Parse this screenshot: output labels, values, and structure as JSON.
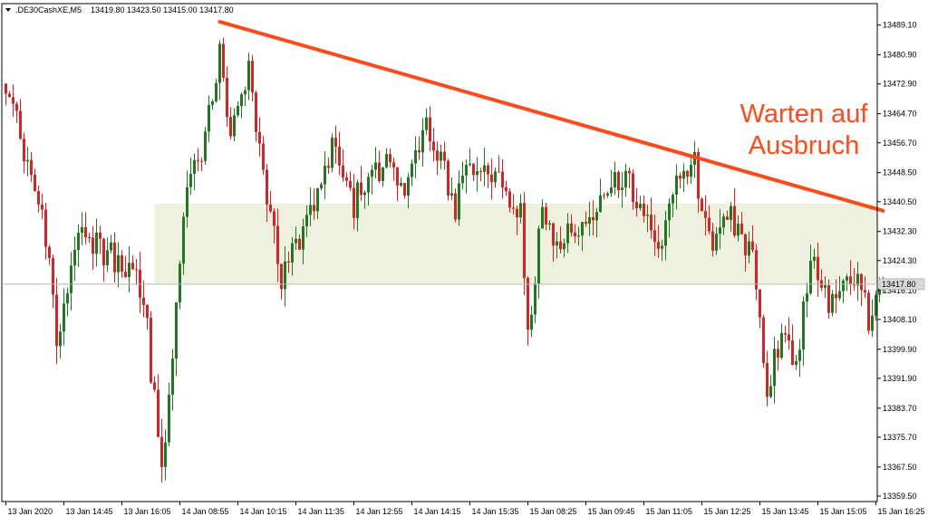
{
  "header": {
    "symbol": ".DE30CashXE,M5",
    "ohlc": "13419.80 13423.50 13415.00 13417.80"
  },
  "annotation": {
    "line1": "Warten auf",
    "line2": "Ausbruch"
  },
  "colors": {
    "bull": "#1f7a1f",
    "bear": "#e02020",
    "trendline": "#ff4a1c",
    "zone": "#eef1df",
    "grid": "#e4e4e4",
    "price_tag": "#d9d9d9"
  },
  "chart_data": {
    "type": "candlestick",
    "title": "",
    "y_axis": {
      "ticks": [
        13359.5,
        13367.5,
        13375.7,
        13383.7,
        13391.9,
        13399.9,
        13408.1,
        13416.1,
        13424.3,
        13432.3,
        13440.5,
        13448.5,
        13456.7,
        13464.7,
        13472.9,
        13480.9,
        13489.1
      ],
      "tick_labels": [
        "13359.50",
        "13367.50",
        "13375.70",
        "13383.70",
        "13391.90",
        "13399.90",
        "13408.10",
        "13416.10",
        "13424.30",
        "13432.30",
        "13440.50",
        "13448.50",
        "13456.70",
        "13464.70",
        "13472.90",
        "13480.90",
        "13489.10"
      ],
      "range": [
        13358.0,
        13495.0
      ]
    },
    "x_axis": {
      "tick_labels": [
        "13 Jan 2020",
        "13 Jan 14:45",
        "13 Jan 16:05",
        "14 Jan 08:55",
        "14 Jan 10:15",
        "14 Jan 11:35",
        "14 Jan 12:55",
        "14 Jan 14:15",
        "14 Jan 15:35",
        "15 Jan 08:25",
        "15 Jan 09:45",
        "15 Jan 11:05",
        "15 Jan 12:25",
        "15 Jan 13:45",
        "15 Jan 15:05",
        "15 Jan 16:25"
      ],
      "tick_bar_index": [
        0,
        16,
        32,
        48,
        64,
        80,
        96,
        112,
        128,
        144,
        160,
        176,
        192,
        208,
        224,
        240
      ]
    },
    "current_price": 13417.8,
    "resistance_line": {
      "from_bar": 59,
      "from_price": 13490.0,
      "to_bar": 242,
      "to_price": 13438.0
    },
    "consolidation_zone": {
      "from_bar": 41,
      "low": 13418.0,
      "high": 13440.0
    },
    "key_points": [
      {
        "bar": 0,
        "price": 13470
      },
      {
        "bar": 10,
        "price": 13440
      },
      {
        "bar": 14,
        "price": 13403
      },
      {
        "bar": 20,
        "price": 13430
      },
      {
        "bar": 28,
        "price": 13427
      },
      {
        "bar": 38,
        "price": 13415
      },
      {
        "bar": 43,
        "price": 13364
      },
      {
        "bar": 47,
        "price": 13410
      },
      {
        "bar": 50,
        "price": 13445
      },
      {
        "bar": 55,
        "price": 13457
      },
      {
        "bar": 59,
        "price": 13482
      },
      {
        "bar": 62,
        "price": 13458
      },
      {
        "bar": 67,
        "price": 13475
      },
      {
        "bar": 72,
        "price": 13442
      },
      {
        "bar": 76,
        "price": 13420
      },
      {
        "bar": 82,
        "price": 13430
      },
      {
        "bar": 90,
        "price": 13455
      },
      {
        "bar": 96,
        "price": 13440
      },
      {
        "bar": 104,
        "price": 13452
      },
      {
        "bar": 110,
        "price": 13440
      },
      {
        "bar": 116,
        "price": 13463
      },
      {
        "bar": 124,
        "price": 13440
      },
      {
        "bar": 130,
        "price": 13453
      },
      {
        "bar": 137,
        "price": 13445
      },
      {
        "bar": 142,
        "price": 13438
      },
      {
        "bar": 144,
        "price": 13403
      },
      {
        "bar": 148,
        "price": 13440
      },
      {
        "bar": 152,
        "price": 13428
      },
      {
        "bar": 160,
        "price": 13437
      },
      {
        "bar": 168,
        "price": 13448
      },
      {
        "bar": 176,
        "price": 13440
      },
      {
        "bar": 180,
        "price": 13428
      },
      {
        "bar": 186,
        "price": 13448
      },
      {
        "bar": 190,
        "price": 13450
      },
      {
        "bar": 194,
        "price": 13428
      },
      {
        "bar": 200,
        "price": 13435
      },
      {
        "bar": 206,
        "price": 13425
      },
      {
        "bar": 210,
        "price": 13390
      },
      {
        "bar": 214,
        "price": 13405
      },
      {
        "bar": 218,
        "price": 13395
      },
      {
        "bar": 222,
        "price": 13425
      },
      {
        "bar": 228,
        "price": 13412
      },
      {
        "bar": 234,
        "price": 13420
      },
      {
        "bar": 238,
        "price": 13408
      },
      {
        "bar": 242,
        "price": 13418
      }
    ]
  }
}
